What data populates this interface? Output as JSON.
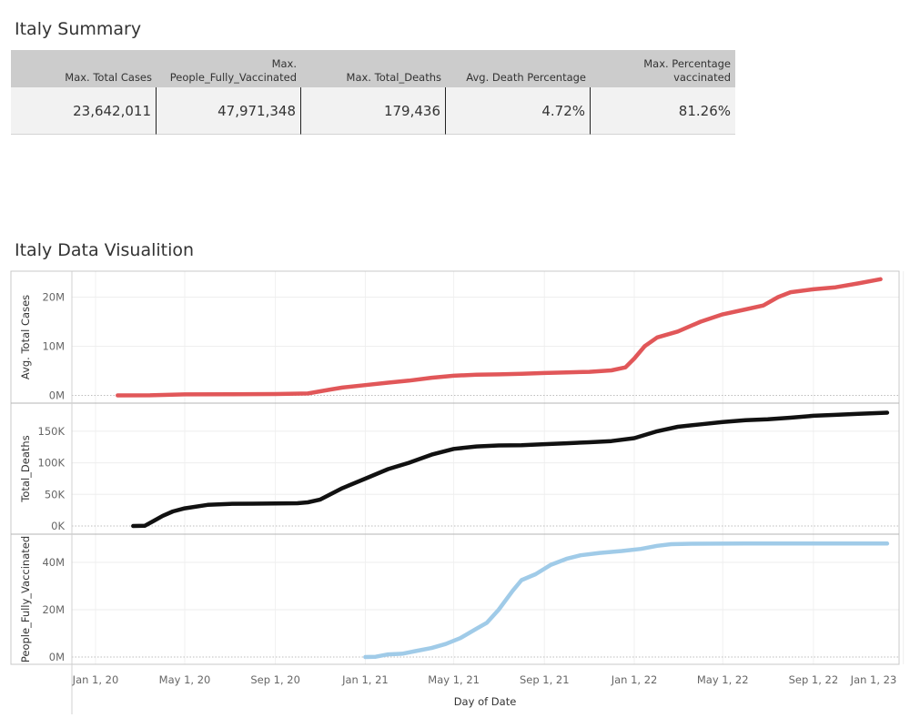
{
  "summary": {
    "title": "Italy Summary",
    "headers": [
      [
        "Max. Total Cases"
      ],
      [
        "Max.",
        "People_Fully_Vaccinated"
      ],
      [
        "Max. Total_Deaths"
      ],
      [
        "Avg. Death Percentage"
      ],
      [
        "Max. Percentage",
        "vaccinated"
      ]
    ],
    "values": [
      "23,642,011",
      "47,971,348",
      "179,436",
      "4.72%",
      "81.26%"
    ]
  },
  "visualization": {
    "title": "Italy Data Visualition"
  },
  "chart_data": {
    "type": "line",
    "xlabel": "Day of Date",
    "x_ticks": [
      "Jan 1, 20",
      "May 1, 20",
      "Sep 1, 20",
      "Jan 1, 21",
      "May 1, 21",
      "Sep 1, 21",
      "Jan 1, 22",
      "May 1, 22",
      "Sep 1, 22",
      "Jan 1, 23"
    ],
    "grid": true,
    "panels": [
      {
        "ylabel": "Avg. Total Cases",
        "color": "#e15759",
        "ylim": [
          0,
          25000000
        ],
        "yticks": [
          0,
          10000000,
          20000000
        ],
        "ytick_labels": [
          "0M",
          "10M",
          "20M"
        ],
        "points": [
          [
            "2020-01-31",
            0
          ],
          [
            "2020-03-15",
            20000
          ],
          [
            "2020-05-01",
            205000
          ],
          [
            "2020-07-01",
            240000
          ],
          [
            "2020-09-01",
            270000
          ],
          [
            "2020-10-15",
            390000
          ],
          [
            "2020-11-15",
            1200000
          ],
          [
            "2020-12-01",
            1600000
          ],
          [
            "2021-01-01",
            2100000
          ],
          [
            "2021-02-01",
            2600000
          ],
          [
            "2021-03-01",
            3000000
          ],
          [
            "2021-04-01",
            3600000
          ],
          [
            "2021-05-01",
            4000000
          ],
          [
            "2021-06-01",
            4230000
          ],
          [
            "2021-07-01",
            4270000
          ],
          [
            "2021-08-01",
            4400000
          ],
          [
            "2021-09-01",
            4560000
          ],
          [
            "2021-10-01",
            4680000
          ],
          [
            "2021-11-01",
            4800000
          ],
          [
            "2021-12-01",
            5100000
          ],
          [
            "2021-12-20",
            5700000
          ],
          [
            "2022-01-01",
            7500000
          ],
          [
            "2022-01-15",
            10000000
          ],
          [
            "2022-02-01",
            11800000
          ],
          [
            "2022-03-01",
            13000000
          ],
          [
            "2022-04-01",
            15000000
          ],
          [
            "2022-05-01",
            16500000
          ],
          [
            "2022-06-01",
            17500000
          ],
          [
            "2022-06-25",
            18300000
          ],
          [
            "2022-07-15",
            20000000
          ],
          [
            "2022-08-01",
            21000000
          ],
          [
            "2022-09-01",
            21600000
          ],
          [
            "2022-10-01",
            22000000
          ],
          [
            "2022-11-01",
            22800000
          ],
          [
            "2022-12-01",
            23642011
          ]
        ]
      },
      {
        "ylabel": "Total_Deaths",
        "color": "#111111",
        "ylim": [
          0,
          187000
        ],
        "yticks": [
          0,
          50000,
          100000,
          150000
        ],
        "ytick_labels": [
          "0K",
          "50K",
          "100K",
          "150K"
        ],
        "points": [
          [
            "2020-02-21",
            0
          ],
          [
            "2020-03-08",
            500
          ],
          [
            "2020-03-20",
            8000
          ],
          [
            "2020-04-01",
            16000
          ],
          [
            "2020-04-15",
            23000
          ],
          [
            "2020-05-01",
            28000
          ],
          [
            "2020-06-01",
            33500
          ],
          [
            "2020-07-01",
            35000
          ],
          [
            "2020-08-01",
            35300
          ],
          [
            "2020-09-01",
            35600
          ],
          [
            "2020-10-01",
            36000
          ],
          [
            "2020-10-15",
            37500
          ],
          [
            "2020-11-01",
            42000
          ],
          [
            "2020-12-01",
            60000
          ],
          [
            "2021-01-01",
            75000
          ],
          [
            "2021-02-01",
            90000
          ],
          [
            "2021-03-01",
            100000
          ],
          [
            "2021-04-01",
            113000
          ],
          [
            "2021-05-01",
            122000
          ],
          [
            "2021-06-01",
            126000
          ],
          [
            "2021-07-01",
            127500
          ],
          [
            "2021-08-01",
            128000
          ],
          [
            "2021-09-01",
            129500
          ],
          [
            "2021-10-01",
            131000
          ],
          [
            "2021-11-01",
            132500
          ],
          [
            "2021-12-01",
            134500
          ],
          [
            "2022-01-01",
            139000
          ],
          [
            "2022-02-01",
            150000
          ],
          [
            "2022-03-01",
            157000
          ],
          [
            "2022-04-01",
            161000
          ],
          [
            "2022-05-01",
            164500
          ],
          [
            "2022-06-01",
            167500
          ],
          [
            "2022-07-01",
            169000
          ],
          [
            "2022-08-01",
            171500
          ],
          [
            "2022-09-01",
            174500
          ],
          [
            "2022-10-01",
            176000
          ],
          [
            "2022-11-01",
            177500
          ],
          [
            "2022-12-10",
            179436
          ]
        ]
      },
      {
        "ylabel": "People_Fully_Vaccinated",
        "color": "#a0cbe8",
        "ylim": [
          0,
          52000000
        ],
        "yticks": [
          0,
          20000000,
          40000000
        ],
        "ytick_labels": [
          "0M",
          "20M",
          "40M"
        ],
        "points": [
          [
            "2021-01-01",
            0
          ],
          [
            "2021-01-15",
            100000
          ],
          [
            "2021-02-01",
            1100000
          ],
          [
            "2021-02-20",
            1400000
          ],
          [
            "2021-03-10",
            2500000
          ],
          [
            "2021-04-01",
            3800000
          ],
          [
            "2021-04-20",
            5500000
          ],
          [
            "2021-05-10",
            8000000
          ],
          [
            "2021-06-01",
            12000000
          ],
          [
            "2021-06-15",
            14500000
          ],
          [
            "2021-07-01",
            20000000
          ],
          [
            "2021-07-20",
            28000000
          ],
          [
            "2021-08-01",
            32500000
          ],
          [
            "2021-08-20",
            35000000
          ],
          [
            "2021-09-10",
            39000000
          ],
          [
            "2021-10-01",
            41500000
          ],
          [
            "2021-10-20",
            43000000
          ],
          [
            "2021-11-15",
            44000000
          ],
          [
            "2021-12-15",
            44800000
          ],
          [
            "2022-01-10",
            45700000
          ],
          [
            "2022-02-01",
            47000000
          ],
          [
            "2022-02-20",
            47700000
          ],
          [
            "2022-03-20",
            47900000
          ],
          [
            "2022-06-01",
            47950000
          ],
          [
            "2022-12-10",
            47971348
          ]
        ]
      }
    ]
  }
}
